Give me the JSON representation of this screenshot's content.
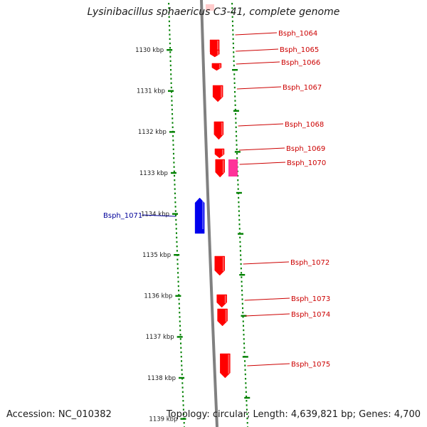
{
  "title": "Lysinibacillus sphaericus C3-41, complete genome",
  "accession": "Accession: NC_010382",
  "summary": "Topology: circular; Length: 4,639,821 bp; Genes: 4,700",
  "colors": {
    "forward_gene": "#ff0000",
    "forward_gene_alt": "#ff3399",
    "reverse_gene": "#0000ee",
    "backbone": "#808080",
    "ticks": "#008000",
    "label_forward": "#cc0000",
    "label_reverse": "#000099"
  },
  "ticks": [
    {
      "label": "1130 kbp"
    },
    {
      "label": "1131 kbp"
    },
    {
      "label": "1132 kbp"
    },
    {
      "label": "1133 kbp"
    },
    {
      "label": "1134 kbp"
    },
    {
      "label": "1135 kbp"
    },
    {
      "label": "1136 kbp"
    },
    {
      "label": "1137 kbp"
    },
    {
      "label": "1138 kbp"
    },
    {
      "label": "1139 kbp"
    }
  ],
  "genes": [
    {
      "name": "Bsph_1064",
      "strand": "+"
    },
    {
      "name": "Bsph_1065",
      "strand": "+"
    },
    {
      "name": "Bsph_1066",
      "strand": "+"
    },
    {
      "name": "Bsph_1067",
      "strand": "+"
    },
    {
      "name": "Bsph_1068",
      "strand": "+"
    },
    {
      "name": "Bsph_1069",
      "strand": "+"
    },
    {
      "name": "Bsph_1070",
      "strand": "+"
    },
    {
      "name": "Bsph_1071",
      "strand": "-"
    },
    {
      "name": "Bsph_1072",
      "strand": "+"
    },
    {
      "name": "Bsph_1073",
      "strand": "+"
    },
    {
      "name": "Bsph_1074",
      "strand": "+"
    },
    {
      "name": "Bsph_1075",
      "strand": "+"
    }
  ]
}
